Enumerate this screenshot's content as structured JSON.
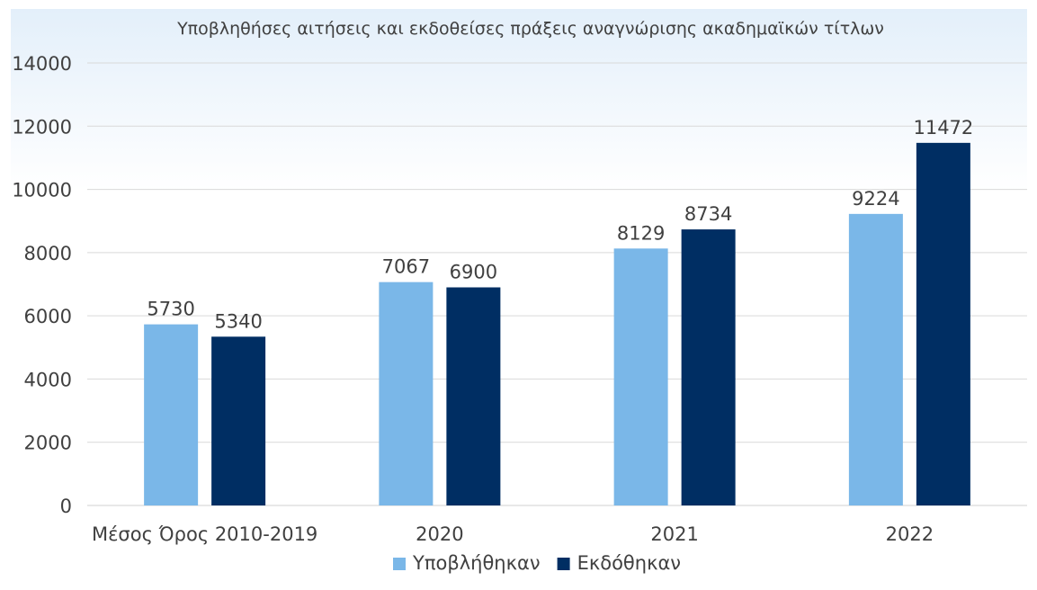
{
  "chart_data": {
    "type": "bar",
    "title": "Υποβληθήσες αιτήσεις και εκδοθείσες πράξεις αναγνώρισης ακαδημαϊκών τίτλων",
    "xlabel": "",
    "ylabel": "",
    "categories": [
      "Μέσος Όρος 2010-2019",
      "2020",
      "2021",
      "2022"
    ],
    "series": [
      {
        "name": "Υποβλήθηκαν",
        "color": "#7ab7e8",
        "values": [
          5730,
          7067,
          8129,
          9224
        ]
      },
      {
        "name": "Εκδόθηκαν",
        "color": "#002e63",
        "values": [
          5340,
          6900,
          8734,
          11472
        ]
      }
    ],
    "ylim": [
      0,
      14000
    ],
    "yticks": [
      0,
      2000,
      4000,
      6000,
      8000,
      10000,
      12000,
      14000
    ],
    "grid": true,
    "legend": "bottom",
    "data_labels": true,
    "background_gradient": [
      "#e3effa",
      "#ffffff"
    ]
  }
}
